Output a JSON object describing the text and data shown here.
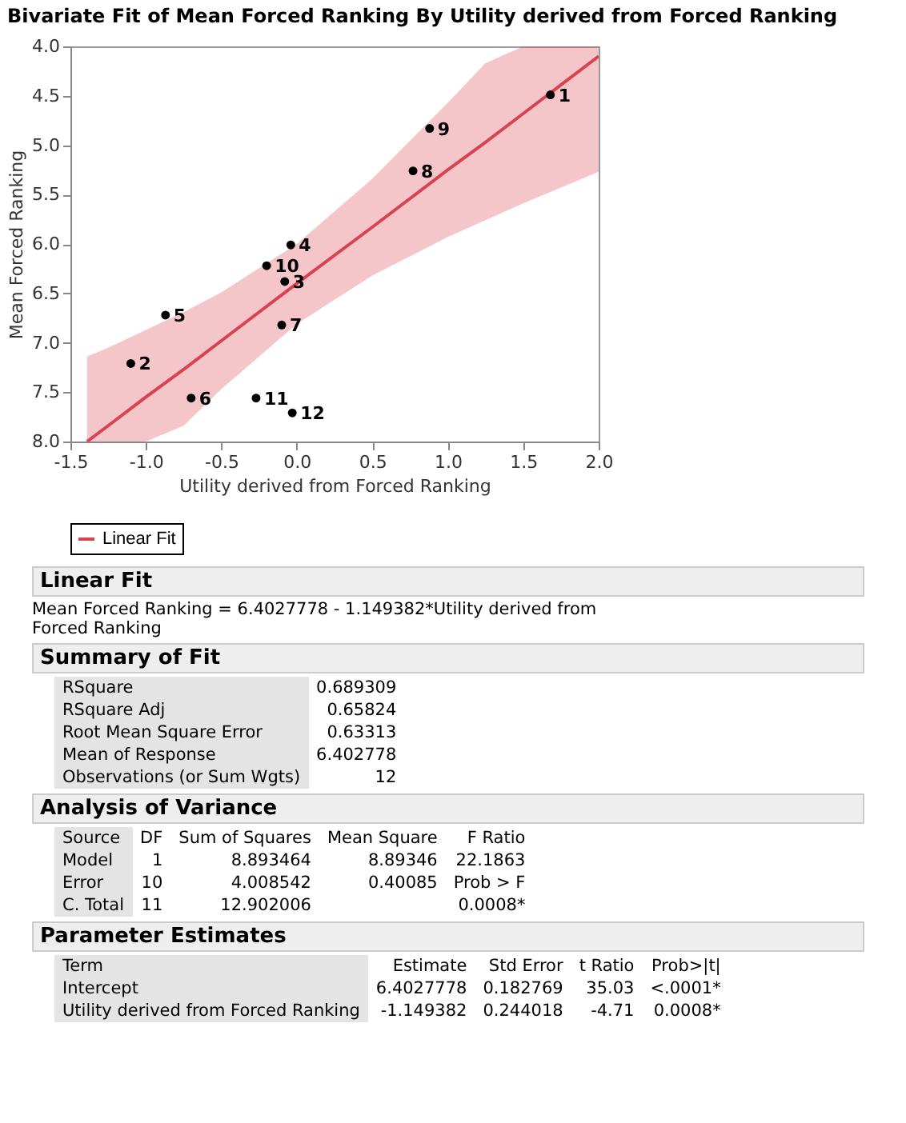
{
  "chart_data": {
    "type": "scatter",
    "title": "Bivariate Fit of Mean Forced Ranking By Utility derived from Forced Ranking",
    "xlabel": "Utility derived from Forced Ranking",
    "ylabel": "Mean Forced Ranking",
    "xlim": [
      -1.5,
      2.0
    ],
    "ylim": [
      8.0,
      4.0
    ],
    "xticks": [
      -1.5,
      {
        "value": -1,
        "label": "-1.0"
      },
      -0.5,
      {
        "value": 0,
        "label": "0.0"
      },
      0.5,
      {
        "value": 1,
        "label": "1.0"
      },
      1.5,
      {
        "value": 2,
        "label": "2.0"
      }
    ],
    "yticks": [
      {
        "value": 4,
        "label": "4.0"
      },
      4.5,
      {
        "value": 5,
        "label": "5.0"
      },
      5.5,
      {
        "value": 6,
        "label": "6.0"
      },
      6.5,
      {
        "value": 7,
        "label": "7.0"
      },
      7.5,
      {
        "value": 8,
        "label": "8.0"
      }
    ],
    "grid": false,
    "legend": "bottom left",
    "marker": "circle",
    "line_style": "solid",
    "series": [
      {
        "type": "line",
        "marker": "none",
        "name": "Linear Fit",
        "color": "#d9434f",
        "x": [
          -1.39,
          -1.25,
          -1,
          -0.75,
          -0.5,
          0,
          0.5,
          1,
          1.25,
          1.5,
          1.75,
          2
        ],
        "values": [
          8.0,
          7.84,
          7.55,
          7.27,
          6.98,
          6.4,
          5.83,
          5.25,
          4.97,
          4.68,
          4.39,
          4.1
        ],
        "lower": [
          7.14,
          7.05,
          6.87,
          6.69,
          6.49,
          6.0,
          5.34,
          4.57,
          4.17,
          4.0,
          4.0,
          4.0
        ],
        "upper": [
          8.0,
          8.0,
          8.0,
          7.84,
          7.47,
          6.81,
          6.32,
          5.93,
          5.76,
          5.59,
          5.43,
          5.27
        ]
      },
      {
        "color": "#000000",
        "x": [
          1.68,
          -1.1,
          -0.08,
          -0.04,
          -0.87,
          -0.7,
          -0.1,
          0.77,
          0.88,
          -0.2,
          -0.27,
          -0.03
        ],
        "values": [
          4.49,
          7.21,
          6.38,
          6.01,
          6.72,
          7.56,
          6.82,
          5.26,
          4.83,
          6.22,
          7.56,
          7.71
        ]
      }
    ],
    "annotations": [
      {
        "text": "1",
        "x": 1.68,
        "y": 4.49
      },
      {
        "text": "2",
        "x": -1.1,
        "y": 7.21
      },
      {
        "text": "3",
        "x": -0.08,
        "y": 6.38
      },
      {
        "text": "4",
        "x": -0.04,
        "y": 6.01
      },
      {
        "text": "5",
        "x": -0.87,
        "y": 6.72
      },
      {
        "text": "6",
        "x": -0.7,
        "y": 7.56
      },
      {
        "text": "7",
        "x": -0.1,
        "y": 6.82
      },
      {
        "text": "8",
        "x": 0.77,
        "y": 5.26
      },
      {
        "text": "9",
        "x": 0.88,
        "y": 4.83
      },
      {
        "text": "10",
        "x": -0.2,
        "y": 6.22
      },
      {
        "text": "11",
        "x": -0.27,
        "y": 7.56
      },
      {
        "text": "12",
        "x": -0.03,
        "y": 7.71
      },
      "Linear Fit",
      "Mean Forced Ranking = 6.4027778 - 1.149382*Utility derived from Forced Ranking",
      "Summary of Fit",
      "RSquare\t0.689309",
      "RSquare Adj\t0.65824",
      "Root Mean Square Error\t0.63313",
      "Mean of Response\t6.402778",
      "Observations (or Sum Wgts)\t12",
      "Analysis of Variance",
      "Source\tDF\tSum of Squares\tMean Square\tF Ratio",
      "Model\t1\t8.893464\t8.89346\t22.1863",
      "Error\t10\t4.008542\t0.40085\tProb > F",
      "C. Total\t11\t12.902006\t\t0.0008*",
      "Parameter Estimates",
      "Term\tEstimate\tStd Error\tt Ratio\tProb>|t|",
      "Intercept\t6.4027778\t0.182769\t35.03\t<.0001*",
      "Utility derived from Forced Ranking\t-1.149382\t0.244018\t-4.71\t0.0008*"
    ]
  }
}
